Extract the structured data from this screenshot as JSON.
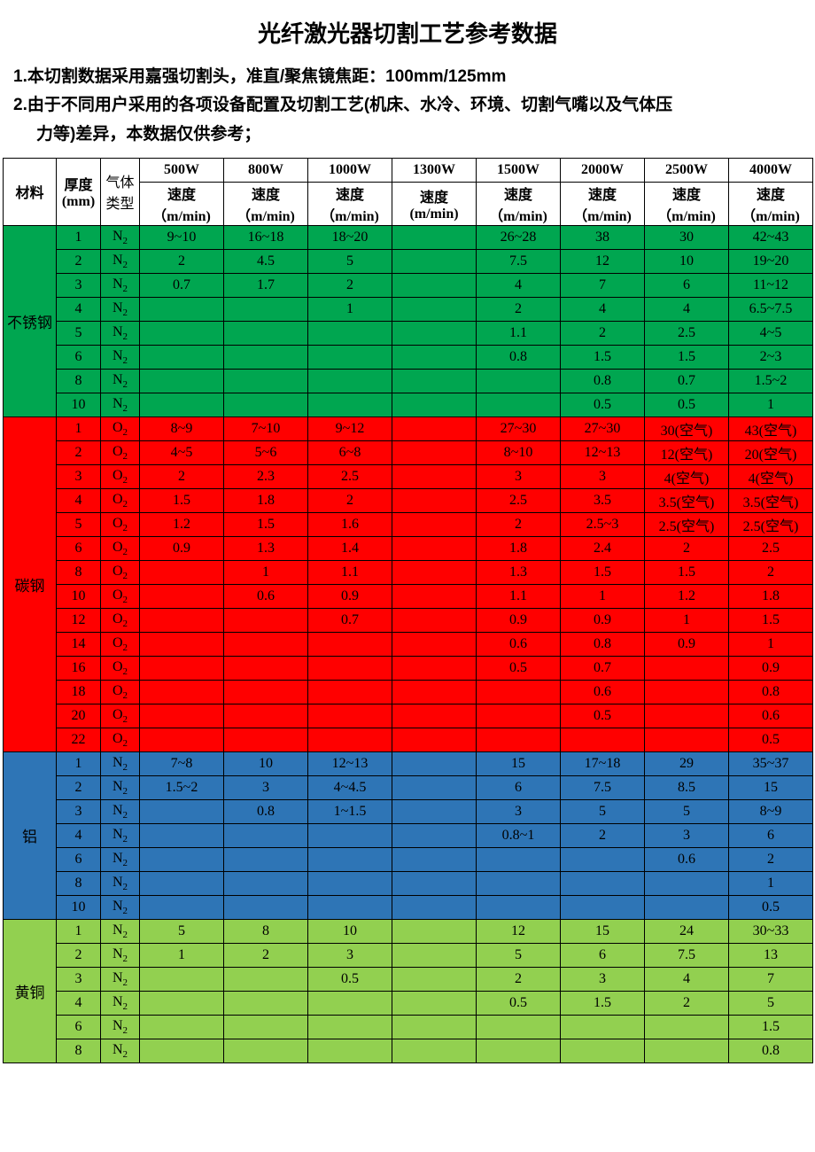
{
  "title": "光纤激光器切割工艺参考数据",
  "notes": {
    "n1": "1.本切割数据采用嘉强切割头，准直/聚焦镜焦距：100mm/125mm",
    "n2a": "2.由于不同用户采用的各项设备配置及切割工艺(机床、水冷、环境、切割气嘴以及气体压",
    "n2b": "力等)差异，本数据仅供参考；"
  },
  "columns": {
    "material": "材料",
    "thickness": "厚度\n(mm)",
    "gas": "气体\n类型",
    "speed_label": "速度\n（m/min)",
    "speed_label_alt": "速度\n(m/min)",
    "powers": [
      "500W",
      "800W",
      "1000W",
      "1300W",
      "1500W",
      "2000W",
      "2500W",
      "4000W"
    ]
  },
  "gas_labels": {
    "N2": "N",
    "O2": "O"
  },
  "colors": {
    "stainless": "#00a650",
    "carbon": "#ff0000",
    "aluminum": "#2e75b6",
    "brass": "#92d050"
  },
  "materials": [
    {
      "name": "不锈钢",
      "color_key": "stainless",
      "gas": "N2",
      "rows": [
        {
          "t": "1",
          "v": [
            "9~10",
            "16~18",
            "18~20",
            "",
            "26~28",
            "38",
            "30",
            "42~43"
          ]
        },
        {
          "t": "2",
          "v": [
            "2",
            "4.5",
            "5",
            "",
            "7.5",
            "12",
            "10",
            "19~20"
          ]
        },
        {
          "t": "3",
          "v": [
            "0.7",
            "1.7",
            "2",
            "",
            "4",
            "7",
            "6",
            "11~12"
          ]
        },
        {
          "t": "4",
          "v": [
            "",
            "",
            "1",
            "",
            "2",
            "4",
            "4",
            "6.5~7.5"
          ]
        },
        {
          "t": "5",
          "v": [
            "",
            "",
            "",
            "",
            "1.1",
            "2",
            "2.5",
            "4~5"
          ]
        },
        {
          "t": "6",
          "v": [
            "",
            "",
            "",
            "",
            "0.8",
            "1.5",
            "1.5",
            "2~3"
          ]
        },
        {
          "t": "8",
          "v": [
            "",
            "",
            "",
            "",
            "",
            "0.8",
            "0.7",
            "1.5~2"
          ]
        },
        {
          "t": "10",
          "v": [
            "",
            "",
            "",
            "",
            "",
            "0.5",
            "0.5",
            "1"
          ]
        }
      ]
    },
    {
      "name": "碳钢",
      "color_key": "carbon",
      "gas": "O2",
      "rows": [
        {
          "t": "1",
          "v": [
            "8~9",
            "7~10",
            "9~12",
            "",
            "27~30",
            "27~30",
            "30(空气)",
            "43(空气)"
          ]
        },
        {
          "t": "2",
          "v": [
            "4~5",
            "5~6",
            "6~8",
            "",
            "8~10",
            "12~13",
            "12(空气)",
            "20(空气)"
          ]
        },
        {
          "t": "3",
          "v": [
            "2",
            "2.3",
            "2.5",
            "",
            "3",
            "3",
            "4(空气)",
            "4(空气)"
          ]
        },
        {
          "t": "4",
          "v": [
            "1.5",
            "1.8",
            "2",
            "",
            "2.5",
            "3.5",
            "3.5(空气)",
            "3.5(空气)"
          ]
        },
        {
          "t": "5",
          "v": [
            "1.2",
            "1.5",
            "1.6",
            "",
            "2",
            "2.5~3",
            "2.5(空气)",
            "2.5(空气)"
          ]
        },
        {
          "t": "6",
          "v": [
            "0.9",
            "1.3",
            "1.4",
            "",
            "1.8",
            "2.4",
            "2",
            "2.5"
          ]
        },
        {
          "t": "8",
          "v": [
            "",
            "1",
            "1.1",
            "",
            "1.3",
            "1.5",
            "1.5",
            "2"
          ]
        },
        {
          "t": "10",
          "v": [
            "",
            "0.6",
            "0.9",
            "",
            "1.1",
            "1",
            "1.2",
            "1.8"
          ]
        },
        {
          "t": "12",
          "v": [
            "",
            "",
            "0.7",
            "",
            "0.9",
            "0.9",
            "1",
            "1.5"
          ]
        },
        {
          "t": "14",
          "v": [
            "",
            "",
            "",
            "",
            "0.6",
            "0.8",
            "0.9",
            "1"
          ]
        },
        {
          "t": "16",
          "v": [
            "",
            "",
            "",
            "",
            "0.5",
            "0.7",
            "",
            "0.9"
          ]
        },
        {
          "t": "18",
          "v": [
            "",
            "",
            "",
            "",
            "",
            "0.6",
            "",
            "0.8"
          ]
        },
        {
          "t": "20",
          "v": [
            "",
            "",
            "",
            "",
            "",
            "0.5",
            "",
            "0.6"
          ]
        },
        {
          "t": "22",
          "v": [
            "",
            "",
            "",
            "",
            "",
            "",
            "",
            "0.5"
          ]
        }
      ]
    },
    {
      "name": "铝",
      "color_key": "aluminum",
      "gas": "N2",
      "rows": [
        {
          "t": "1",
          "v": [
            "7~8",
            "10",
            "12~13",
            "",
            "15",
            "17~18",
            "29",
            "35~37"
          ]
        },
        {
          "t": "2",
          "v": [
            "1.5~2",
            "3",
            "4~4.5",
            "",
            "6",
            "7.5",
            "8.5",
            "15"
          ]
        },
        {
          "t": "3",
          "v": [
            "",
            "0.8",
            "1~1.5",
            "",
            "3",
            "5",
            "5",
            "8~9"
          ]
        },
        {
          "t": "4",
          "v": [
            "",
            "",
            "",
            "",
            "0.8~1",
            "2",
            "3",
            "6"
          ]
        },
        {
          "t": "6",
          "v": [
            "",
            "",
            "",
            "",
            "",
            "",
            "0.6",
            "2"
          ]
        },
        {
          "t": "8",
          "v": [
            "",
            "",
            "",
            "",
            "",
            "",
            "",
            "1"
          ]
        },
        {
          "t": "10",
          "v": [
            "",
            "",
            "",
            "",
            "",
            "",
            "",
            "0.5"
          ]
        }
      ]
    },
    {
      "name": "黄铜",
      "color_key": "brass",
      "gas": "N2",
      "rows": [
        {
          "t": "1",
          "v": [
            "5",
            "8",
            "10",
            "",
            "12",
            "15",
            "24",
            "30~33"
          ]
        },
        {
          "t": "2",
          "v": [
            "1",
            "2",
            "3",
            "",
            "5",
            "6",
            "7.5",
            "13"
          ]
        },
        {
          "t": "3",
          "v": [
            "",
            "",
            "0.5",
            "",
            "2",
            "3",
            "4",
            "7"
          ]
        },
        {
          "t": "4",
          "v": [
            "",
            "",
            "",
            "",
            "0.5",
            "1.5",
            "2",
            "5"
          ]
        },
        {
          "t": "6",
          "v": [
            "",
            "",
            "",
            "",
            "",
            "",
            "",
            "1.5"
          ]
        },
        {
          "t": "8",
          "v": [
            "",
            "",
            "",
            "",
            "",
            "",
            "",
            "0.8"
          ]
        }
      ]
    }
  ]
}
